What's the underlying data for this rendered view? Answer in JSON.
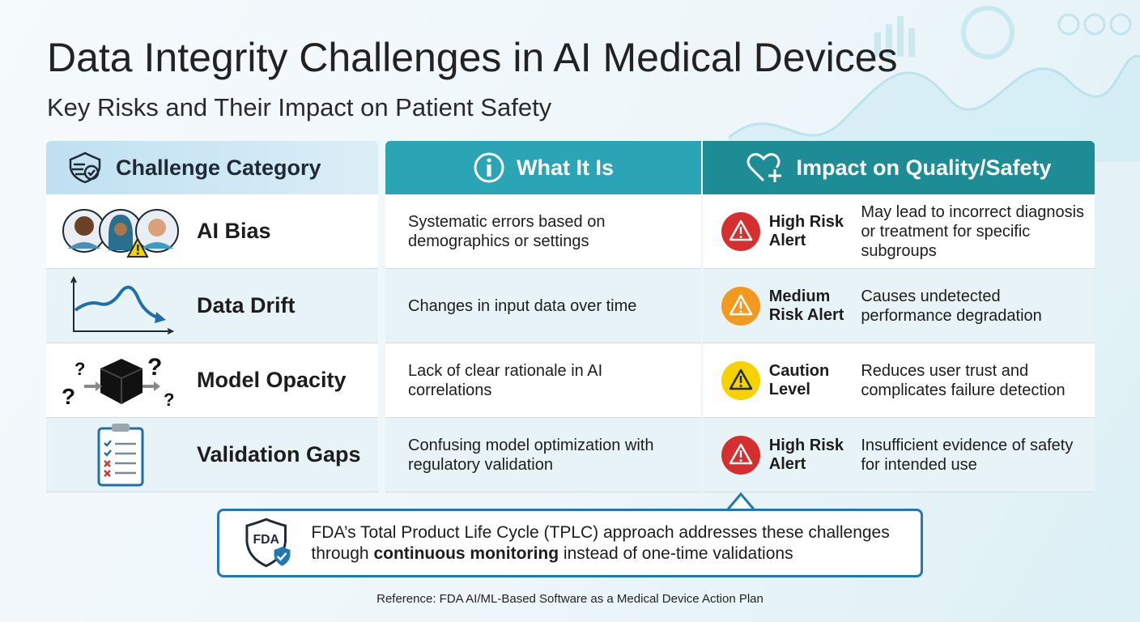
{
  "header": {
    "title": "Data Integrity Challenges in AI Medical Devices",
    "subtitle": "Key Risks and Their Impact on Patient Safety"
  },
  "table": {
    "columns": [
      "Challenge Category",
      "What It Is",
      "Impact on Quality/Safety"
    ],
    "rows": [
      {
        "category": "AI Bias",
        "description": "Systematic errors based on demographics or settings",
        "risk": "High Risk Alert",
        "risk_color": "#d62f2f",
        "impact": "May lead to incorrect diagnosis or treatment for specific subgroups"
      },
      {
        "category": "Data Drift",
        "description": "Changes in input data over time",
        "risk": "Medium Risk Alert",
        "risk_color": "#f39a1e",
        "impact": "Causes undetected performance degradation"
      },
      {
        "category": "Model Opacity",
        "description": "Lack of clear rationale in AI correlations",
        "risk": "Caution Level",
        "risk_color": "#f6d200",
        "impact": "Reduces user trust and complicates failure detection"
      },
      {
        "category": "Validation Gaps",
        "description": "Confusing model optimization with regulatory validation",
        "risk": "High Risk Alert",
        "risk_color": "#d62f2f",
        "impact": "Insufficient evidence of safety for intended use"
      }
    ]
  },
  "callout": {
    "logo": "FDA",
    "text_before": "FDA’s Total Product Life Cycle (TPLC) approach addresses these challenges through ",
    "text_bold": "continuous monitoring",
    "text_after": " instead of one-time validations"
  },
  "reference": "Reference: FDA AI/ML-Based Software as a Medical Device Action Plan"
}
